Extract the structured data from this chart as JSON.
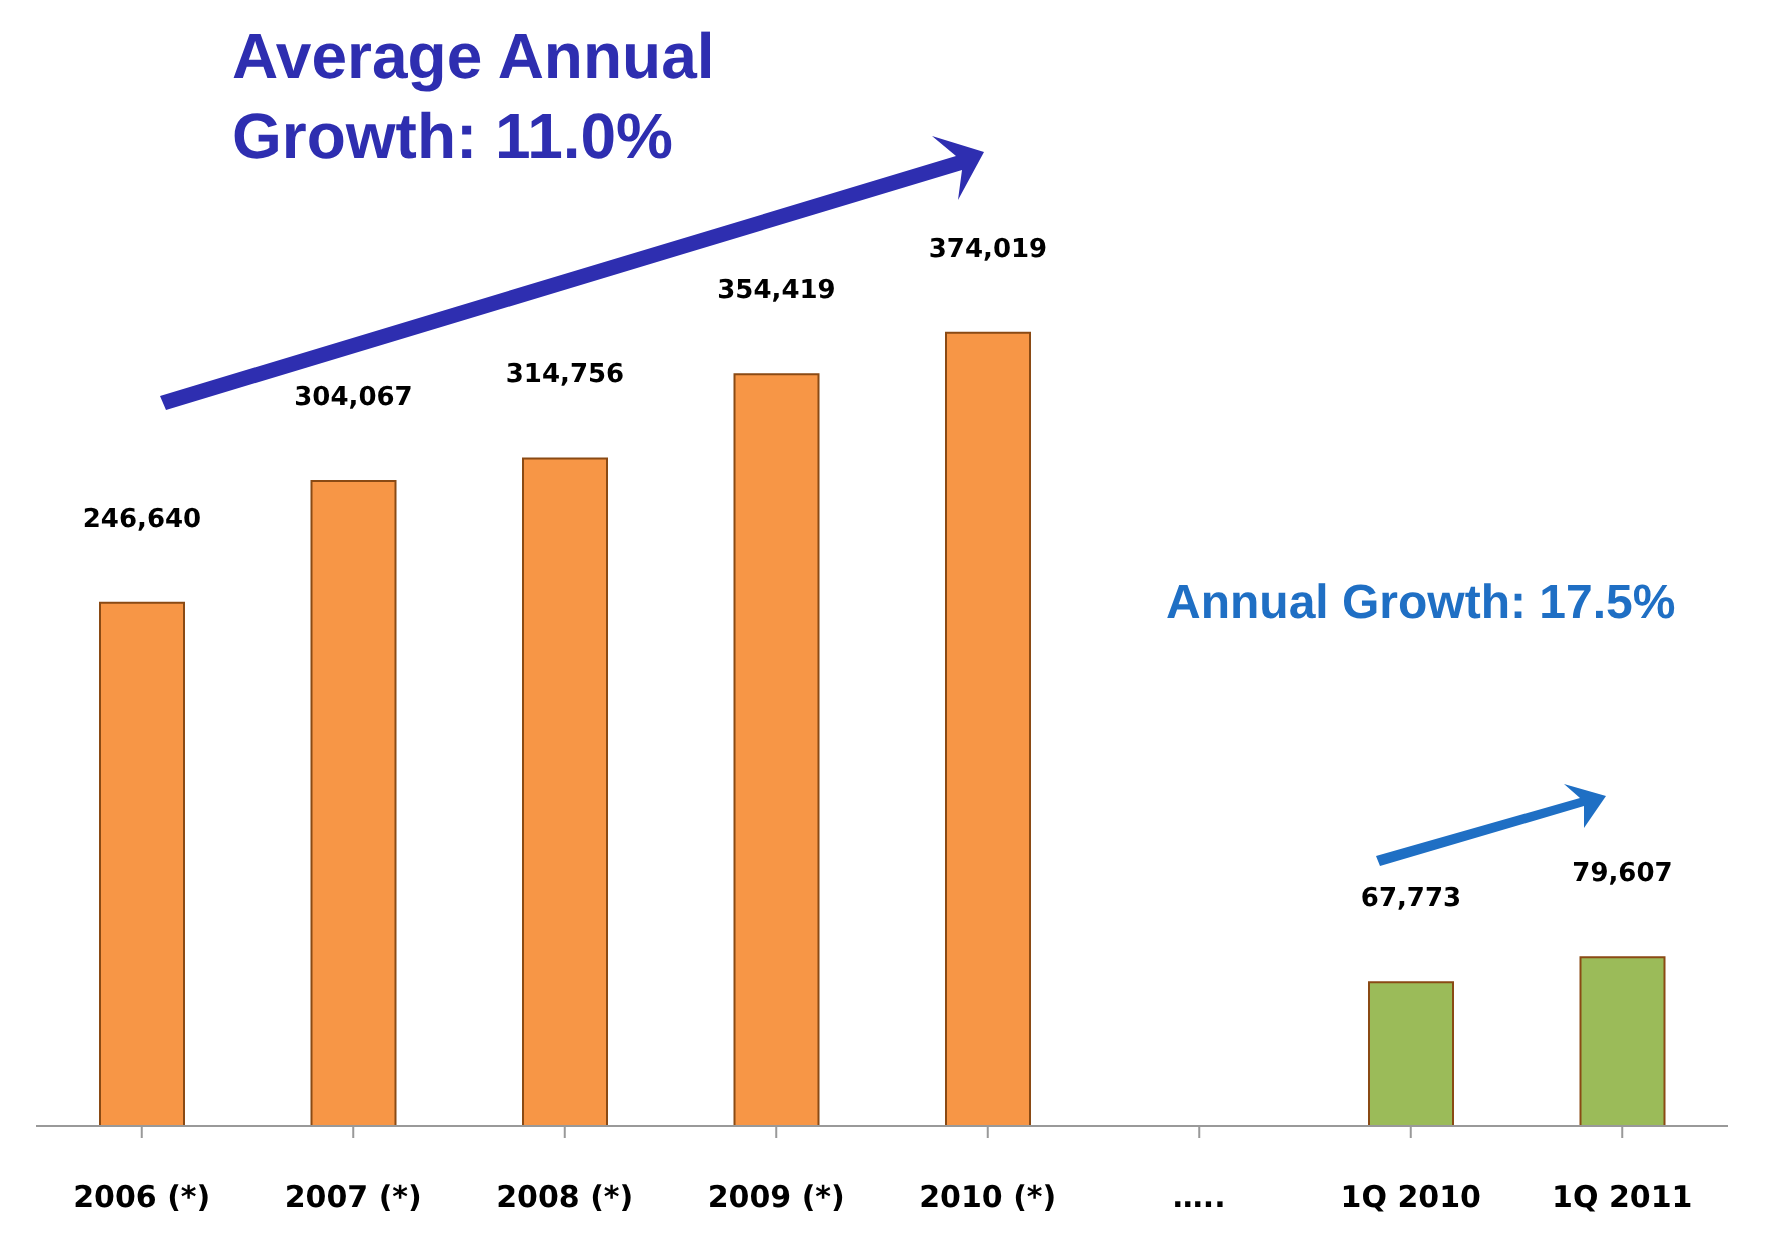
{
  "chart_data": {
    "type": "bar",
    "categories": [
      "2006 (*)",
      "2007 (*)",
      "2008 (*)",
      "2009 (*)",
      "2010 (*)",
      "…..",
      "1Q 2010",
      "1Q 2011"
    ],
    "values": [
      246640,
      304067,
      314756,
      354419,
      374019,
      null,
      67773,
      79607
    ],
    "colors": [
      "#f79646",
      "#f79646",
      "#f79646",
      "#f79646",
      "#f79646",
      "#f79646",
      "#9bbb59",
      "#9bbb59"
    ],
    "value_labels": [
      "246,640",
      "304,067",
      "314,756",
      "354,419",
      "374,019",
      null,
      "67,773",
      "79,607"
    ],
    "grid": false,
    "legend": false,
    "tick_labels": "x",
    "annotations": [
      "Average Annual Growth: 11.0%",
      "Annual Growth: 17.5%"
    ]
  }
}
